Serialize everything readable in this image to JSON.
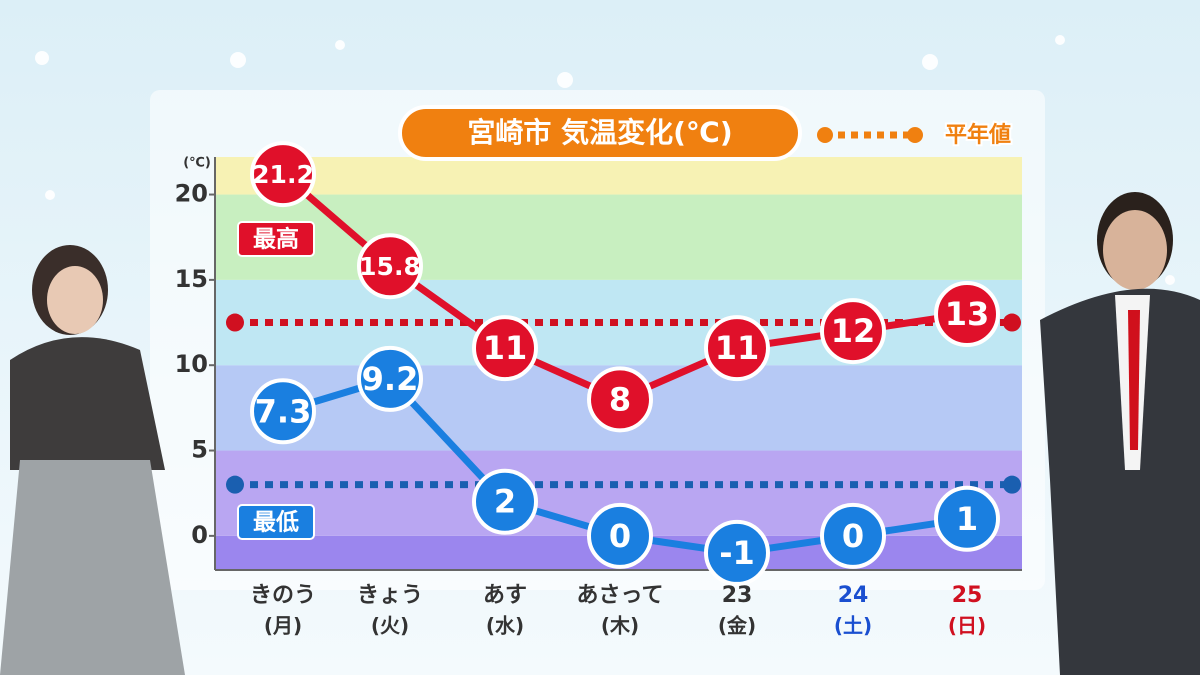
{
  "chart_data": {
    "type": "line",
    "title": "宮崎市 気温変化(℃)",
    "y_unit": "(℃)",
    "categories": [
      "きのう",
      "きょう",
      "あす",
      "あさって",
      "23",
      "24",
      "25"
    ],
    "days": [
      "(月)",
      "(火)",
      "(水)",
      "(木)",
      "(金)",
      "(土)",
      "(日)"
    ],
    "category_colors": [
      "#333333",
      "#333333",
      "#333333",
      "#333333",
      "#333333",
      "#1a4fd0",
      "#d01020"
    ],
    "series": [
      {
        "name": "最高",
        "color": "#e0102a",
        "values": [
          21.2,
          15.8,
          11,
          8,
          11,
          12,
          13
        ]
      },
      {
        "name": "最低",
        "color": "#1a7fe0",
        "values": [
          7.3,
          9.2,
          2,
          0,
          -1,
          0,
          1
        ]
      }
    ],
    "normal_label": "平年値",
    "normal_high": 12.5,
    "normal_low": 3,
    "ylim": [
      -2,
      22.2
    ],
    "yticks": [
      0,
      5,
      10,
      15,
      20
    ]
  }
}
